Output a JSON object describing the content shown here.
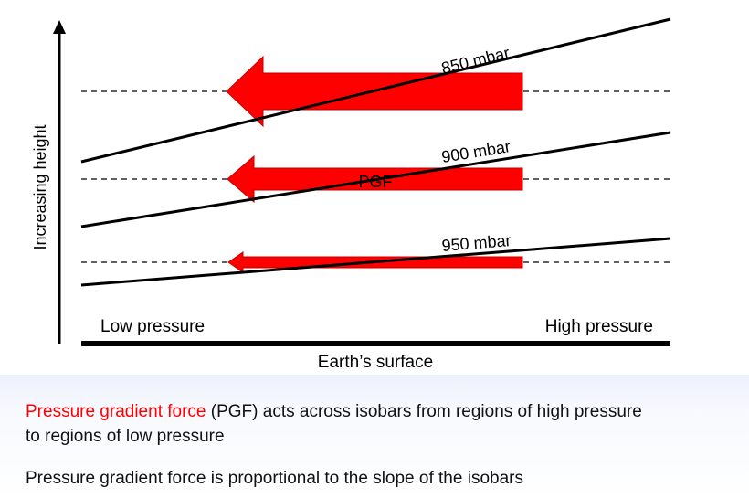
{
  "diagram": {
    "y_axis_label": "Increasing height",
    "ground_label": "Earth’s surface",
    "left_label": "Low pressure",
    "right_label": "High pressure",
    "isobars": [
      {
        "label": "850 mbar"
      },
      {
        "label": "900 mbar"
      },
      {
        "label": "950 mbar"
      }
    ],
    "force_label": "PGF",
    "colors": {
      "arrow": "#ff0000",
      "line": "#000000"
    }
  },
  "caption": {
    "line1_red": "Pressure gradient force",
    "line1_rest": " (PGF) acts across isobars from regions of high pressure",
    "line2": "to regions of low pressure",
    "line3": "Pressure gradient force is proportional to the slope of the isobars"
  }
}
